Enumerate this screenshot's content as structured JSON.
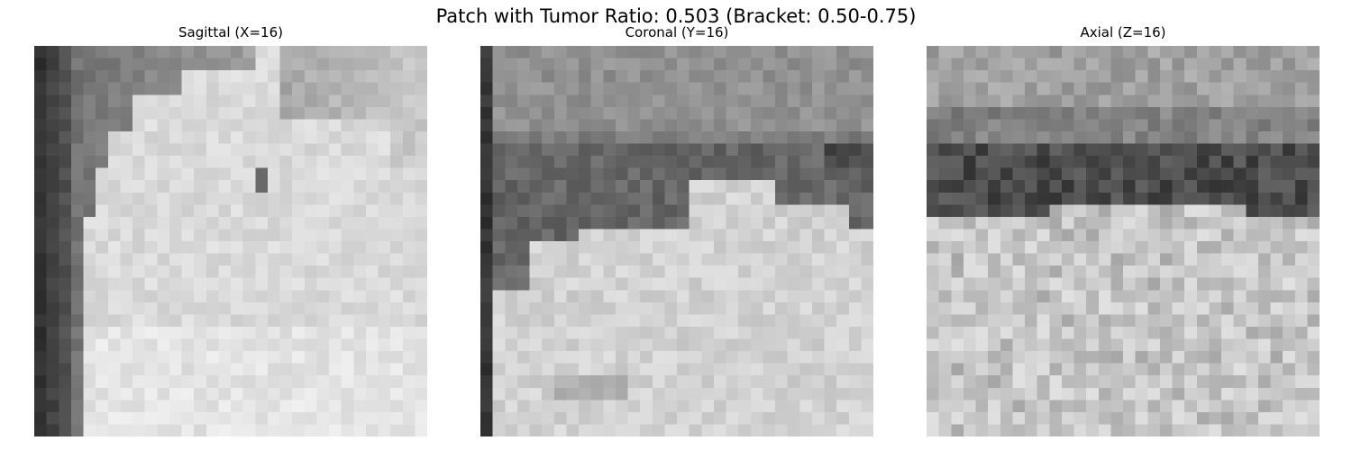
{
  "figure": {
    "title": "Patch with Tumor Ratio: 0.503 (Bracket: 0.50-0.75)"
  },
  "panels": [
    {
      "title": "Sagittal (X=16)",
      "view": "sagittal"
    },
    {
      "title": "Coronal (Y=16)",
      "view": "coronal"
    },
    {
      "title": "Axial (Z=16)",
      "view": "axial"
    }
  ],
  "colormap": "gray"
}
